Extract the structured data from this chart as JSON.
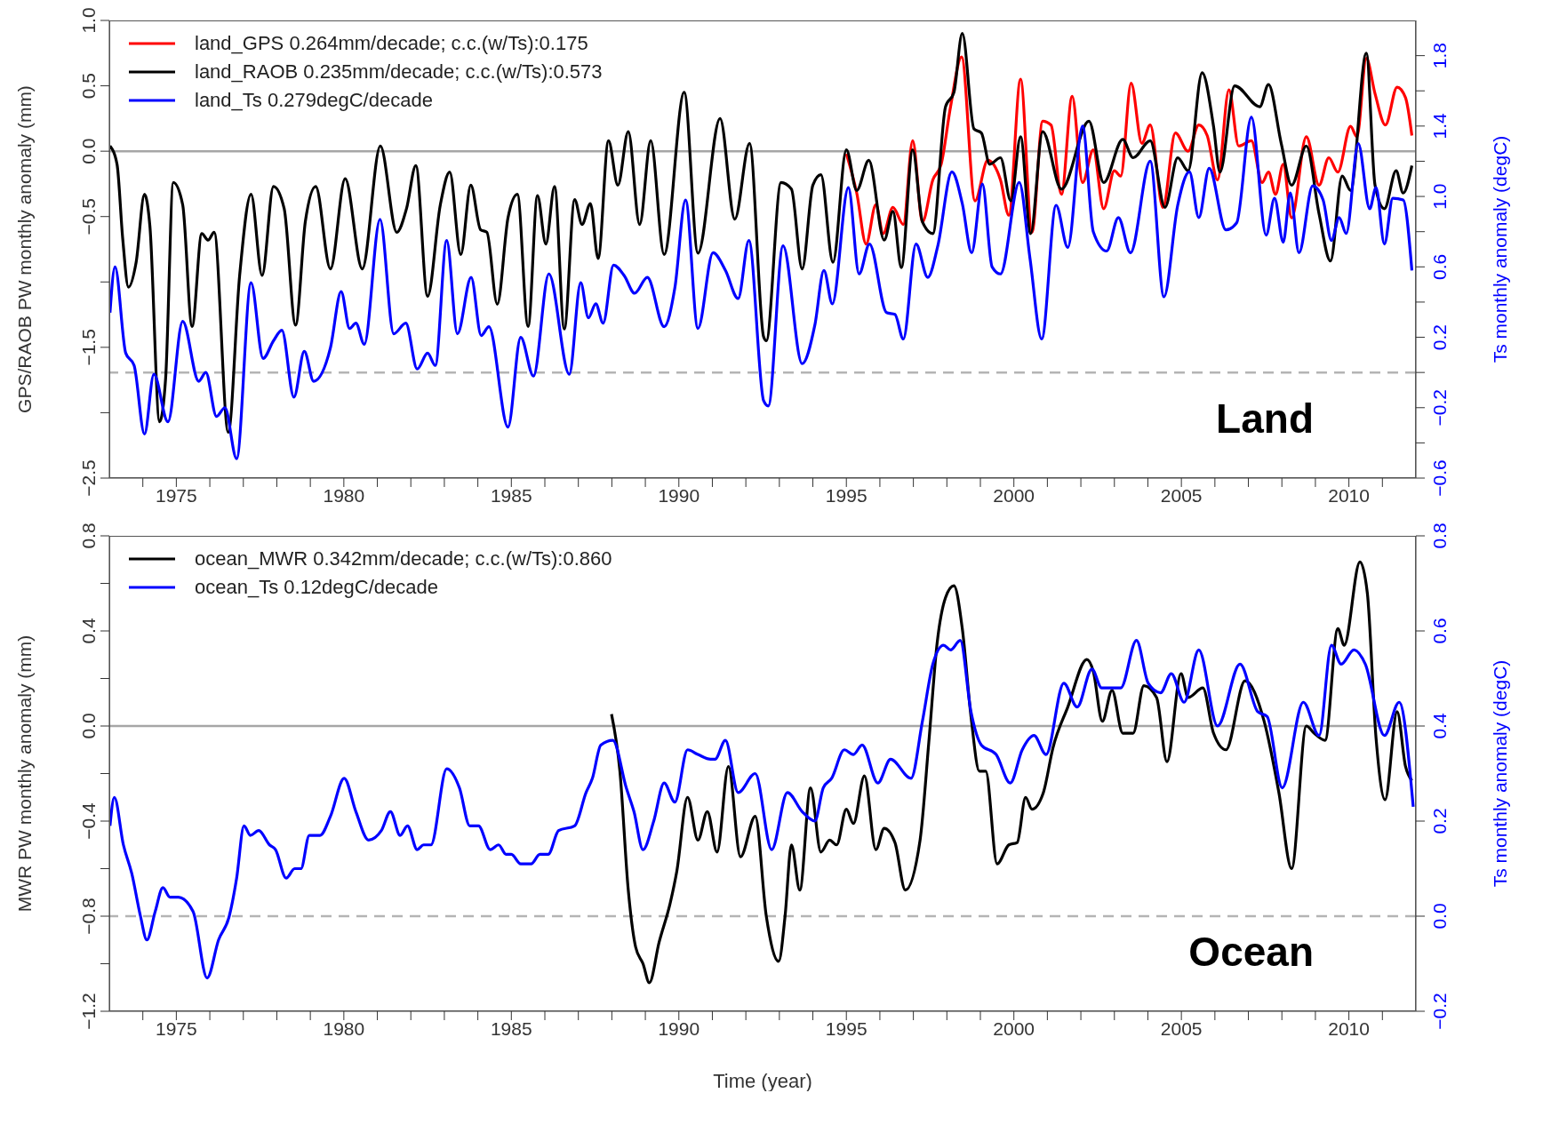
{
  "chart_data": [
    {
      "type": "line",
      "xlim": [
        1973,
        2012
      ],
      "ylim": [
        -2.5,
        1
      ],
      "y2lim": [
        -0.6,
        2.0
      ],
      "xticks": [
        {
          "value": 1974,
          "label": null
        },
        1975,
        {
          "value": 1976,
          "label": null
        },
        {
          "value": 1977,
          "label": null
        },
        {
          "value": 1978,
          "label": null
        },
        {
          "value": 1979,
          "label": null
        },
        1980,
        {
          "value": 1981,
          "label": null
        },
        {
          "value": 1982,
          "label": null
        },
        {
          "value": 1983,
          "label": null
        },
        {
          "value": 1984,
          "label": null
        },
        1985,
        {
          "value": 1986,
          "label": null
        },
        {
          "value": 1987,
          "label": null
        },
        {
          "value": 1988,
          "label": null
        },
        {
          "value": 1989,
          "label": null
        },
        1990,
        {
          "value": 1991,
          "label": null
        },
        {
          "value": 1992,
          "label": null
        },
        {
          "value": 1993,
          "label": null
        },
        {
          "value": 1994,
          "label": null
        },
        1995,
        {
          "value": 1996,
          "label": null
        },
        {
          "value": 1997,
          "label": null
        },
        {
          "value": 1998,
          "label": null
        },
        {
          "value": 1999,
          "label": null
        },
        2000,
        {
          "value": 2001,
          "label": null
        },
        {
          "value": 2002,
          "label": null
        },
        {
          "value": 2003,
          "label": null
        },
        {
          "value": 2004,
          "label": null
        },
        2005,
        {
          "value": 2006,
          "label": null
        },
        {
          "value": 2007,
          "label": null
        },
        {
          "value": 2008,
          "label": null
        },
        {
          "value": 2009,
          "label": null
        },
        2010,
        {
          "value": 2011,
          "label": null
        }
      ],
      "yticks": [
        {
          "value": 1,
          "label": "1.0"
        },
        {
          "value": 0.5,
          "label": "0.5"
        },
        {
          "value": 0,
          "label": "0.0"
        },
        {
          "value": -0.5,
          "label": "−0.5"
        },
        {
          "value": -1,
          "label": null
        },
        {
          "value": -1.5,
          "label": "−1.5"
        },
        {
          "value": -2,
          "label": null
        },
        {
          "value": -2.5,
          "label": "−2.5"
        }
      ],
      "y2ticks": [
        {
          "value": -0.6,
          "label": "−0.6"
        },
        {
          "value": -0.4,
          "label": null
        },
        {
          "value": -0.2,
          "label": "−0.2"
        },
        {
          "value": 0,
          "label": null
        },
        {
          "value": 0.2,
          "label": "0.2"
        },
        {
          "value": 0.4,
          "label": null
        },
        {
          "value": 0.6,
          "label": "0.6"
        },
        {
          "value": 0.8,
          "label": null
        },
        {
          "value": 1,
          "label": "1.0"
        },
        {
          "value": 1.2,
          "label": null
        },
        {
          "value": 1.4,
          "label": "1.4"
        },
        {
          "value": 1.6,
          "label": null
        },
        {
          "value": 1.8,
          "label": "1.8"
        }
      ],
      "ylabel": "GPS/RAOB PW monthly anomaly (mm)",
      "y2label": "Ts monthly anomaly (degC)",
      "legend": "top left",
      "marker": "none",
      "line_style": "solid",
      "ref_lines": [
        {
          "axis": "y",
          "value": 0,
          "color": "#a6a6a6",
          "line_style": "solid"
        },
        {
          "axis": "y2",
          "value": 0,
          "color": "#b4b4b4",
          "line_style": "dashed"
        }
      ],
      "annotations": [
        "Land"
      ],
      "series": [
        {
          "name": "land_GPS 0.264mm/decade; c.c.(w/Ts):0.175",
          "color": "#ff0000",
          "x": [
            1995.0,
            1995.31,
            1995.59,
            1995.88,
            1996.1,
            1996.39,
            1996.7,
            1996.98,
            1997.27,
            1997.58,
            1997.83,
            1998.11,
            1998.44,
            1998.84,
            1999.22,
            1999.6,
            1999.85,
            2000.2,
            2000.54,
            2000.86,
            2001.11,
            2001.42,
            2001.74,
            2002.05,
            2002.37,
            2002.68,
            2003.0,
            2003.19,
            2003.5,
            2003.82,
            2004.07,
            2004.45,
            2004.82,
            2005.2,
            2005.52,
            2005.77,
            2006.08,
            2006.42,
            2006.71,
            2007.09,
            2007.41,
            2007.6,
            2007.81,
            2008.04,
            2008.29,
            2008.73,
            2009.11,
            2009.4,
            2009.67,
            2010.05,
            2010.24,
            2010.52,
            2010.78,
            2011.09,
            2011.44,
            2011.69,
            2011.88
          ],
          "values": [
            -0.02,
            -0.32,
            -0.71,
            -0.41,
            -0.63,
            -0.43,
            -0.56,
            0.08,
            -0.54,
            -0.22,
            -0.1,
            0.34,
            0.72,
            -0.38,
            -0.07,
            -0.22,
            -0.49,
            0.55,
            -0.62,
            0.23,
            0.2,
            -0.33,
            0.42,
            -0.24,
            0.01,
            -0.44,
            -0.15,
            -0.19,
            0.52,
            0.06,
            0.2,
            -0.43,
            0.14,
            0.0,
            0.2,
            0.12,
            -0.22,
            0.47,
            0.04,
            0.08,
            -0.24,
            -0.16,
            -0.33,
            -0.1,
            -0.51,
            0.11,
            -0.26,
            -0.05,
            -0.16,
            0.19,
            0.11,
            0.71,
            0.44,
            0.2,
            0.49,
            0.41,
            0.12
          ]
        },
        {
          "name": "land_RAOB 0.235mm/decade; c.c.(w/Ts):0.573",
          "color": "#000000",
          "x": [
            1973.02,
            1973.23,
            1973.4,
            1973.57,
            1973.8,
            1974.05,
            1974.21,
            1974.5,
            1974.68,
            1974.91,
            1975.19,
            1975.47,
            1975.76,
            1975.95,
            1976.13,
            1976.55,
            1976.89,
            1977.23,
            1977.56,
            1977.9,
            1978.22,
            1978.56,
            1978.85,
            1979.16,
            1979.6,
            1980.04,
            1980.55,
            1981.09,
            1981.58,
            1981.87,
            1982.15,
            1982.5,
            1982.88,
            1983.16,
            1983.49,
            1983.79,
            1984.08,
            1984.27,
            1984.58,
            1984.9,
            1985.18,
            1985.5,
            1985.78,
            1986.03,
            1986.29,
            1986.58,
            1986.89,
            1987.11,
            1987.36,
            1987.59,
            1987.9,
            1988.18,
            1988.49,
            1988.83,
            1989.16,
            1989.56,
            1990.16,
            1990.57,
            1991.23,
            1991.67,
            1992.11,
            1992.53,
            1992.61,
            1993.05,
            1993.36,
            1993.68,
            1994.0,
            1994.24,
            1994.6,
            1995.0,
            1995.31,
            1995.67,
            1996.13,
            1996.39,
            1996.64,
            1996.98,
            1997.27,
            1997.58,
            1997.96,
            1998.21,
            1998.46,
            1998.81,
            1999.03,
            1999.28,
            1999.6,
            1999.91,
            2000.2,
            2000.5,
            2000.86,
            2001.42,
            2002.24,
            2002.68,
            2003.25,
            2003.56,
            2004.07,
            2004.51,
            2004.89,
            2005.2,
            2005.62,
            2005.96,
            2006.15,
            2006.59,
            2007.34,
            2007.6,
            2007.98,
            2008.29,
            2008.73,
            2009.11,
            2009.45,
            2009.8,
            2010.05,
            2010.52,
            2010.78,
            2011.06,
            2011.41,
            2011.62,
            2011.88
          ],
          "values": [
            0.04,
            -0.1,
            -0.67,
            -1.04,
            -0.85,
            -0.33,
            -0.57,
            -2.07,
            -1.74,
            -0.24,
            -0.41,
            -1.34,
            -0.63,
            -0.68,
            -0.62,
            -2.15,
            -0.95,
            -0.33,
            -0.95,
            -0.27,
            -0.44,
            -1.33,
            -0.54,
            -0.27,
            -0.9,
            -0.21,
            -0.9,
            0.04,
            -0.62,
            -0.44,
            -0.11,
            -1.11,
            -0.41,
            -0.16,
            -0.79,
            -0.26,
            -0.6,
            -0.62,
            -1.17,
            -0.51,
            -0.33,
            -1.34,
            -0.34,
            -0.71,
            -0.27,
            -1.36,
            -0.37,
            -0.56,
            -0.4,
            -0.82,
            0.08,
            -0.26,
            0.15,
            -0.56,
            0.08,
            -0.79,
            0.45,
            -0.78,
            0.25,
            -0.52,
            0.06,
            -1.42,
            -1.45,
            -0.24,
            -0.29,
            -0.9,
            -0.26,
            -0.18,
            -0.85,
            0.01,
            -0.3,
            -0.07,
            -0.68,
            -0.46,
            -0.89,
            0.01,
            -0.54,
            -0.63,
            0.34,
            0.45,
            0.9,
            0.17,
            0.14,
            -0.1,
            -0.05,
            -0.38,
            0.11,
            -0.63,
            0.15,
            -0.29,
            0.23,
            -0.24,
            0.09,
            -0.05,
            0.08,
            -0.43,
            -0.05,
            -0.15,
            0.6,
            0.19,
            -0.16,
            0.5,
            0.34,
            0.51,
            0.06,
            -0.26,
            0.04,
            -0.48,
            -0.84,
            -0.19,
            -0.3,
            0.75,
            -0.26,
            -0.44,
            -0.15,
            -0.32,
            -0.11
          ]
        },
        {
          "name": "land_Ts 0.279degC/decade",
          "color": "#0000ff",
          "axis": "y2",
          "x": [
            1973.02,
            1973.17,
            1973.49,
            1973.74,
            1974.05,
            1974.33,
            1974.75,
            1975.19,
            1975.67,
            1975.88,
            1976.2,
            1976.45,
            1976.8,
            1977.23,
            1977.59,
            1977.9,
            1978.15,
            1978.51,
            1978.82,
            1979.1,
            1979.6,
            1979.92,
            1980.17,
            1980.36,
            1980.61,
            1981.08,
            1981.49,
            1981.85,
            1982.19,
            1982.5,
            1982.73,
            1983.07,
            1983.39,
            1983.8,
            1984.1,
            1984.33,
            1984.9,
            1985.28,
            1985.66,
            1986.12,
            1986.73,
            1987.07,
            1987.3,
            1987.52,
            1987.74,
            1988.05,
            1988.37,
            1988.68,
            1989.06,
            1989.56,
            1989.88,
            1990.2,
            1990.57,
            1991.02,
            1991.39,
            1991.77,
            1992.09,
            1992.53,
            1992.67,
            1993.11,
            1993.68,
            1994.06,
            1994.33,
            1994.58,
            1995.06,
            1995.38,
            1995.69,
            1996.2,
            1996.45,
            1996.7,
            1997.08,
            1997.43,
            1997.73,
            1998.15,
            1998.46,
            1998.74,
            1999.06,
            1999.35,
            1999.6,
            2000.16,
            2000.48,
            2000.83,
            2001.26,
            2001.61,
            2002.05,
            2002.37,
            2002.77,
            2003.12,
            2003.48,
            2004.07,
            2004.48,
            2004.89,
            2005.24,
            2005.52,
            2005.83,
            2006.33,
            2006.65,
            2007.09,
            2007.53,
            2007.78,
            2008.04,
            2008.25,
            2008.51,
            2008.92,
            2009.23,
            2009.48,
            2009.71,
            2009.92,
            2010.28,
            2010.62,
            2010.81,
            2011.06,
            2011.31,
            2011.62,
            2011.88
          ],
          "values": [
            0.34,
            0.6,
            0.11,
            0.04,
            -0.35,
            -0.01,
            -0.28,
            0.29,
            -0.05,
            0.0,
            -0.25,
            -0.2,
            -0.49,
            0.51,
            0.08,
            0.18,
            0.24,
            -0.14,
            0.12,
            -0.05,
            0.14,
            0.46,
            0.25,
            0.28,
            0.16,
            0.87,
            0.22,
            0.28,
            0.02,
            0.11,
            0.04,
            0.75,
            0.22,
            0.54,
            0.21,
            0.26,
            -0.31,
            0.2,
            -0.02,
            0.56,
            -0.01,
            0.51,
            0.31,
            0.39,
            0.28,
            0.61,
            0.55,
            0.45,
            0.54,
            0.26,
            0.48,
            0.98,
            0.25,
            0.68,
            0.58,
            0.42,
            0.75,
            -0.16,
            -0.19,
            0.72,
            0.05,
            0.27,
            0.58,
            0.39,
            1.05,
            0.56,
            0.73,
            0.34,
            0.33,
            0.19,
            0.73,
            0.54,
            0.72,
            1.14,
            0.96,
            0.68,
            1.07,
            0.6,
            0.56,
            1.08,
            0.65,
            0.19,
            0.95,
            0.71,
            1.4,
            0.8,
            0.69,
            0.88,
            0.68,
            1.2,
            0.43,
            0.95,
            1.14,
            0.88,
            1.16,
            0.81,
            0.85,
            1.45,
            0.78,
            0.99,
            0.74,
            1.02,
            0.68,
            1.06,
            0.98,
            0.75,
            0.88,
            0.79,
            1.3,
            0.93,
            1.05,
            0.73,
            0.99,
            0.98,
            0.58
          ]
        }
      ]
    },
    {
      "type": "line",
      "xlim": [
        1973,
        2012
      ],
      "ylim": [
        -1.2,
        0.8
      ],
      "y2lim": [
        -0.2,
        0.8
      ],
      "xticks": [
        {
          "value": 1974,
          "label": null
        },
        1975,
        {
          "value": 1976,
          "label": null
        },
        {
          "value": 1977,
          "label": null
        },
        {
          "value": 1978,
          "label": null
        },
        {
          "value": 1979,
          "label": null
        },
        1980,
        {
          "value": 1981,
          "label": null
        },
        {
          "value": 1982,
          "label": null
        },
        {
          "value": 1983,
          "label": null
        },
        {
          "value": 1984,
          "label": null
        },
        1985,
        {
          "value": 1986,
          "label": null
        },
        {
          "value": 1987,
          "label": null
        },
        {
          "value": 1988,
          "label": null
        },
        {
          "value": 1989,
          "label": null
        },
        1990,
        {
          "value": 1991,
          "label": null
        },
        {
          "value": 1992,
          "label": null
        },
        {
          "value": 1993,
          "label": null
        },
        {
          "value": 1994,
          "label": null
        },
        1995,
        {
          "value": 1996,
          "label": null
        },
        {
          "value": 1997,
          "label": null
        },
        {
          "value": 1998,
          "label": null
        },
        {
          "value": 1999,
          "label": null
        },
        2000,
        {
          "value": 2001,
          "label": null
        },
        {
          "value": 2002,
          "label": null
        },
        {
          "value": 2003,
          "label": null
        },
        {
          "value": 2004,
          "label": null
        },
        2005,
        {
          "value": 2006,
          "label": null
        },
        {
          "value": 2007,
          "label": null
        },
        {
          "value": 2008,
          "label": null
        },
        {
          "value": 2009,
          "label": null
        },
        2010,
        {
          "value": 2011,
          "label": null
        }
      ],
      "yticks": [
        {
          "value": 0.8,
          "label": "0.8"
        },
        {
          "value": 0.6,
          "label": null
        },
        {
          "value": 0.4,
          "label": "0.4"
        },
        {
          "value": 0.2,
          "label": null
        },
        {
          "value": 0,
          "label": "0.0"
        },
        {
          "value": -0.2,
          "label": null
        },
        {
          "value": -0.4,
          "label": "−0.4"
        },
        {
          "value": -0.6,
          "label": null
        },
        {
          "value": -0.8,
          "label": "−0.8"
        },
        {
          "value": -1,
          "label": null
        },
        {
          "value": -1.2,
          "label": "−1.2"
        }
      ],
      "y2ticks": [
        {
          "value": -0.2,
          "label": "−0.2"
        },
        {
          "value": 0,
          "label": "0.0"
        },
        {
          "value": 0.2,
          "label": "0.2"
        },
        {
          "value": 0.4,
          "label": "0.4"
        },
        {
          "value": 0.6,
          "label": "0.6"
        },
        {
          "value": 0.8,
          "label": "0.8"
        }
      ],
      "xlabel": "Time (year)",
      "ylabel": "MWR PW monthly anomaly (mm)",
      "y2label": "Ts monthly anomaly (degC)",
      "legend": "top left",
      "marker": "none",
      "line_style": "solid",
      "ref_lines": [
        {
          "axis": "y",
          "value": 0,
          "color": "#a6a6a6",
          "line_style": "solid"
        },
        {
          "axis": "y2",
          "value": 0,
          "color": "#b4b4b4",
          "line_style": "dashed"
        }
      ],
      "annotations": [
        "Ocean"
      ],
      "series": [
        {
          "name": "ocean_MWR 0.342mm/decade; c.c.(w/Ts):0.860",
          "color": "#000000",
          "x": [
            1987.99,
            1988.24,
            1988.49,
            1988.71,
            1988.93,
            1989.12,
            1989.41,
            1989.75,
            1989.94,
            1990.26,
            1990.57,
            1990.85,
            1991.14,
            1991.48,
            1991.84,
            1992.28,
            1992.61,
            1992.98,
            1993.17,
            1993.36,
            1993.61,
            1993.93,
            1994.24,
            1994.5,
            1994.71,
            1995.0,
            1995.21,
            1995.54,
            1995.88,
            1996.13,
            1996.45,
            1996.76,
            1997.2,
            1997.46,
            1997.71,
            1997.96,
            1998.21,
            1998.46,
            1998.72,
            1998.97,
            1999.16,
            1999.5,
            1999.85,
            2000.1,
            2000.35,
            2000.54,
            2000.88,
            2001.17,
            2001.61,
            2002.18,
            2002.37,
            2002.64,
            2002.93,
            2003.25,
            2003.56,
            2003.88,
            2004.26,
            2004.57,
            2004.99,
            2005.2,
            2005.64,
            2005.96,
            2006.33,
            2006.9,
            2007.47,
            2007.91,
            2008.29,
            2008.73,
            2008.96,
            2009.29,
            2009.67,
            2009.86,
            2010.33,
            2010.55,
            2010.81,
            2011.08,
            2011.44,
            2011.69,
            2011.88
          ],
          "values": [
            0.05,
            -0.19,
            -0.69,
            -0.93,
            -1.0,
            -1.08,
            -0.91,
            -0.74,
            -0.61,
            -0.3,
            -0.48,
            -0.36,
            -0.53,
            -0.17,
            -0.55,
            -0.38,
            -0.8,
            -0.99,
            -0.8,
            -0.5,
            -0.69,
            -0.26,
            -0.53,
            -0.48,
            -0.5,
            -0.35,
            -0.41,
            -0.21,
            -0.52,
            -0.43,
            -0.49,
            -0.69,
            -0.48,
            -0.07,
            0.35,
            0.54,
            0.59,
            0.41,
            0.04,
            -0.19,
            -0.19,
            -0.58,
            -0.5,
            -0.49,
            -0.3,
            -0.35,
            -0.28,
            -0.09,
            0.08,
            0.28,
            0.23,
            0.02,
            0.15,
            -0.03,
            -0.03,
            0.17,
            0.12,
            -0.15,
            0.22,
            0.12,
            0.16,
            -0.03,
            -0.1,
            0.19,
            0.02,
            -0.28,
            -0.6,
            0.0,
            -0.03,
            -0.06,
            0.41,
            0.34,
            0.69,
            0.56,
            -0.05,
            -0.31,
            0.06,
            -0.17,
            -0.23
          ]
        },
        {
          "name": "ocean_Ts 0.12degC/decade",
          "color": "#0000ff",
          "axis": "y2",
          "x": [
            1973.02,
            1973.15,
            1973.42,
            1973.67,
            1973.93,
            1974.12,
            1974.37,
            1974.6,
            1974.81,
            1975.06,
            1975.5,
            1975.92,
            1976.26,
            1976.58,
            1976.8,
            1977.02,
            1977.21,
            1977.46,
            1977.78,
            1977.96,
            1978.28,
            1978.53,
            1978.72,
            1978.97,
            1979.29,
            1979.6,
            1980.01,
            1980.36,
            1980.74,
            1981.12,
            1981.39,
            1981.68,
            1981.9,
            1982.19,
            1982.38,
            1982.6,
            1983.07,
            1983.45,
            1983.76,
            1984.02,
            1984.37,
            1984.62,
            1984.84,
            1985.0,
            1985.28,
            1985.59,
            1985.85,
            1986.1,
            1986.41,
            1986.89,
            1987.23,
            1987.42,
            1987.67,
            1988.03,
            1988.43,
            1988.66,
            1988.93,
            1989.25,
            1989.56,
            1989.88,
            1990.26,
            1990.57,
            1990.95,
            1991.08,
            1991.39,
            1991.77,
            1992.28,
            1992.77,
            1993.24,
            1993.68,
            1994.06,
            1994.31,
            1994.56,
            1994.94,
            1995.21,
            1995.47,
            1995.94,
            1996.32,
            1996.93,
            1997.27,
            1997.58,
            1997.9,
            1998.11,
            1998.4,
            1998.72,
            1999.03,
            1999.47,
            1999.89,
            2000.25,
            2000.6,
            2000.96,
            2001.49,
            2001.89,
            2002.33,
            2002.62,
            2003.19,
            2003.66,
            2004.01,
            2004.38,
            2004.7,
            2005.08,
            2005.52,
            2006.08,
            2006.75,
            2007.28,
            2007.56,
            2008.01,
            2008.64,
            2009.11,
            2009.48,
            2009.77,
            2010.15,
            2010.49,
            2011.06,
            2011.5,
            2011.92
          ],
          "values": [
            0.19,
            0.25,
            0.15,
            0.09,
            0.0,
            -0.05,
            0.01,
            0.06,
            0.04,
            0.04,
            0.01,
            -0.13,
            -0.05,
            0.0,
            0.08,
            0.19,
            0.17,
            0.18,
            0.15,
            0.14,
            0.08,
            0.1,
            0.1,
            0.17,
            0.17,
            0.21,
            0.29,
            0.22,
            0.16,
            0.18,
            0.22,
            0.17,
            0.19,
            0.14,
            0.15,
            0.15,
            0.31,
            0.27,
            0.19,
            0.19,
            0.14,
            0.15,
            0.13,
            0.13,
            0.11,
            0.11,
            0.13,
            0.13,
            0.18,
            0.19,
            0.26,
            0.29,
            0.36,
            0.37,
            0.27,
            0.22,
            0.14,
            0.2,
            0.28,
            0.24,
            0.35,
            0.34,
            0.33,
            0.33,
            0.37,
            0.26,
            0.3,
            0.14,
            0.26,
            0.22,
            0.2,
            0.27,
            0.29,
            0.35,
            0.34,
            0.36,
            0.28,
            0.33,
            0.29,
            0.41,
            0.53,
            0.57,
            0.56,
            0.58,
            0.43,
            0.36,
            0.34,
            0.28,
            0.35,
            0.38,
            0.34,
            0.49,
            0.44,
            0.52,
            0.48,
            0.48,
            0.58,
            0.49,
            0.47,
            0.51,
            0.45,
            0.56,
            0.4,
            0.53,
            0.43,
            0.42,
            0.27,
            0.45,
            0.38,
            0.57,
            0.53,
            0.56,
            0.53,
            0.38,
            0.45,
            0.23
          ]
        }
      ]
    }
  ]
}
